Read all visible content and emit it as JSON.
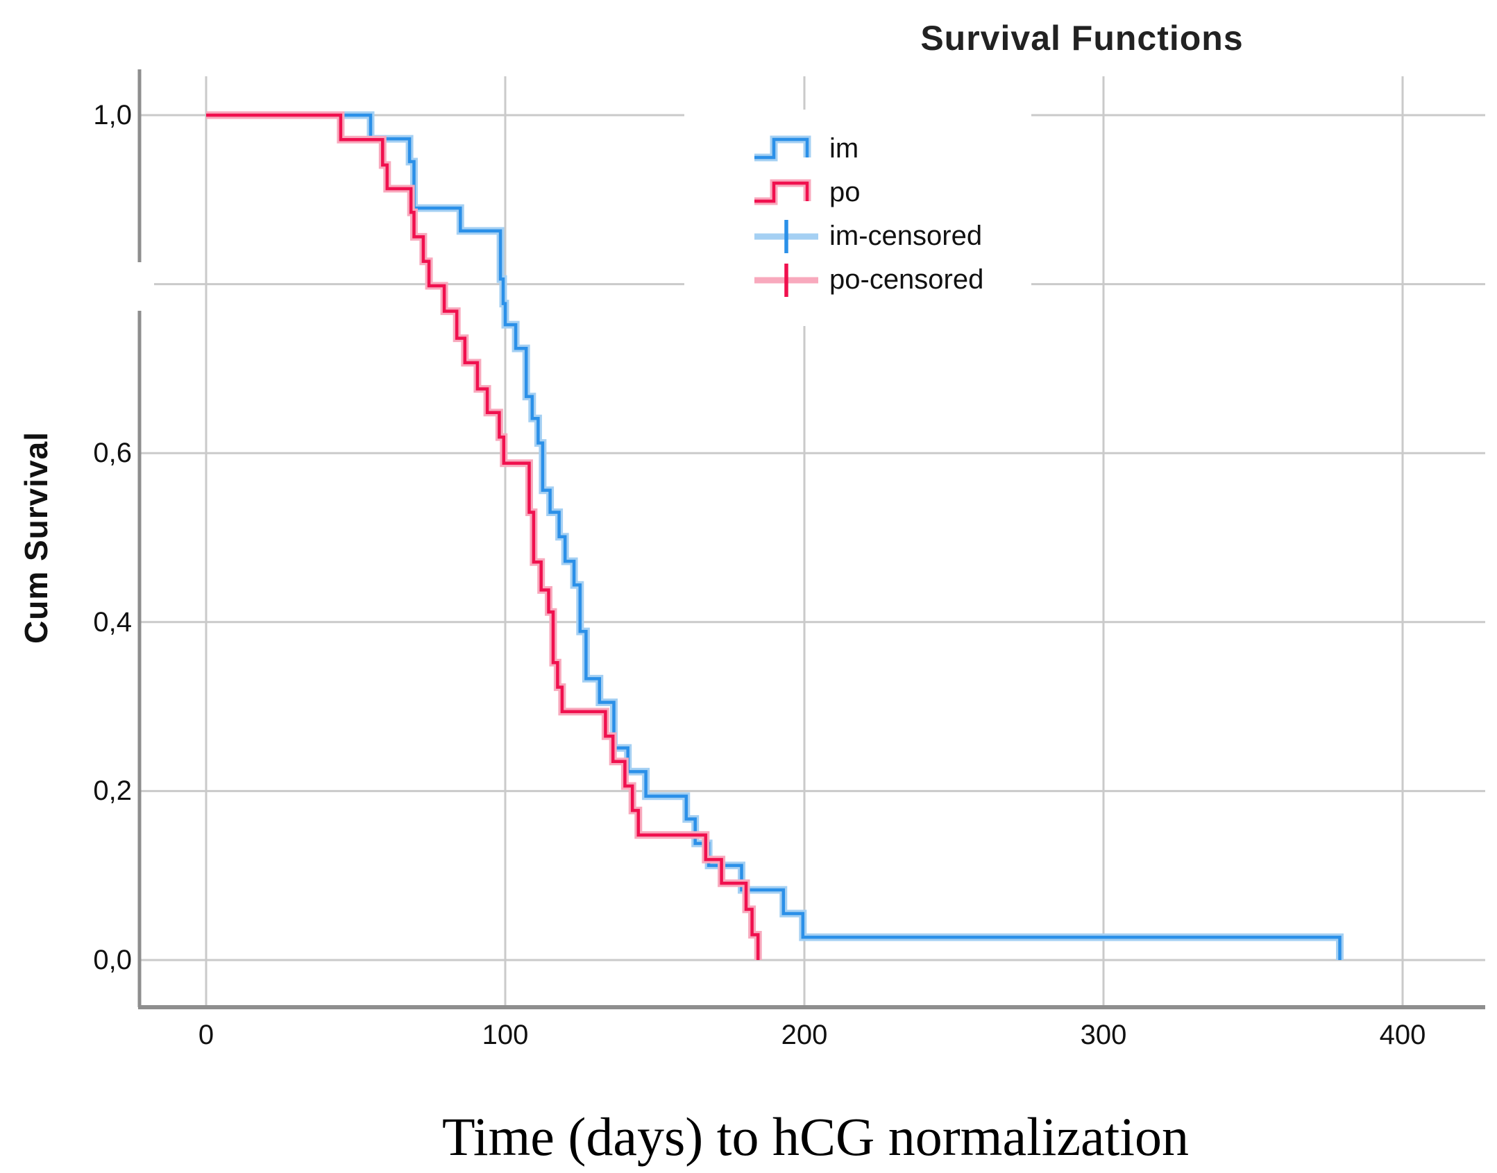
{
  "title": "Survival Functions",
  "y_axis": {
    "title": "Cum Survival",
    "tick_labels": [
      "1,0",
      "0,6",
      "0,4",
      "0,2",
      "0,0"
    ],
    "tick_values": [
      1.0,
      0.6,
      0.4,
      0.2,
      0.0
    ],
    "unlabeled_gridline_value": 0.8
  },
  "x_axis": {
    "title": "Time (days) to hCG normalization",
    "tick_labels": [
      "0",
      "100",
      "200",
      "300",
      "400"
    ],
    "tick_values": [
      0,
      100,
      200,
      300,
      400
    ]
  },
  "legend": {
    "items": [
      {
        "label": "im",
        "type": "step-line",
        "color": "#2B90E8",
        "halo": "#A5D0F3"
      },
      {
        "label": "po",
        "type": "step-line",
        "color": "#F0104E",
        "halo": "#F8A9BD"
      },
      {
        "label": "im-censored",
        "type": "censored-mark",
        "color": "#2B90E8",
        "halo": "#A5D0F3"
      },
      {
        "label": "po-censored",
        "type": "censored-mark",
        "color": "#F0104E",
        "halo": "#F8A9BD"
      }
    ]
  },
  "colors": {
    "im": "#2B90E8",
    "im_halo": "#A5D0F3",
    "po": "#F0104E",
    "po_halo": "#F8A9BD",
    "gridline": "#CACACA",
    "axis": "#8E8E8E",
    "text": "#111111"
  },
  "chart_data": {
    "type": "line",
    "subtype": "kaplan-meier-step",
    "title": "Survival Functions",
    "xlabel": "Time (days) to hCG normalization",
    "ylabel": "Cum Survival",
    "xlim": [
      -22,
      428
    ],
    "ylim": [
      -0.056,
      1.054
    ],
    "grid": true,
    "legend_position": "upper-center-right",
    "series": [
      {
        "name": "im",
        "color": "#2B90E8",
        "start": [
          0,
          1.0
        ],
        "steps": [
          [
            55,
            0.972
          ],
          [
            68,
            0.945
          ],
          [
            69.5,
            0.89
          ],
          [
            85,
            0.863
          ],
          [
            98.4,
            0.806
          ],
          [
            99.3,
            0.777
          ],
          [
            100,
            0.752
          ],
          [
            103.5,
            0.724
          ],
          [
            107,
            0.667
          ],
          [
            109,
            0.641
          ],
          [
            111,
            0.612
          ],
          [
            112.5,
            0.556
          ],
          [
            115,
            0.53
          ],
          [
            118,
            0.501
          ],
          [
            120,
            0.472
          ],
          [
            123,
            0.444
          ],
          [
            125,
            0.389
          ],
          [
            127,
            0.333
          ],
          [
            131.5,
            0.305
          ],
          [
            136.3,
            0.251
          ],
          [
            141,
            0.223
          ],
          [
            147,
            0.194
          ],
          [
            160.5,
            0.167
          ],
          [
            163.5,
            0.138
          ],
          [
            168,
            0.112
          ],
          [
            179,
            0.083
          ],
          [
            193,
            0.055
          ],
          [
            199.5,
            0.027
          ],
          [
            379,
            0.0
          ]
        ]
      },
      {
        "name": "po",
        "color": "#F0104E",
        "start": [
          0,
          1.0
        ],
        "steps": [
          [
            45,
            0.971
          ],
          [
            59,
            0.941
          ],
          [
            60.5,
            0.913
          ],
          [
            68.5,
            0.885
          ],
          [
            69.5,
            0.856
          ],
          [
            72.6,
            0.827
          ],
          [
            74.5,
            0.798
          ],
          [
            79.6,
            0.768
          ],
          [
            83.8,
            0.736
          ],
          [
            86.5,
            0.707
          ],
          [
            90.7,
            0.676
          ],
          [
            94,
            0.648
          ],
          [
            98,
            0.619
          ],
          [
            99.5,
            0.588
          ],
          [
            108,
            0.53
          ],
          [
            109.5,
            0.471
          ],
          [
            112,
            0.438
          ],
          [
            114.5,
            0.412
          ],
          [
            116,
            0.352
          ],
          [
            117.5,
            0.323
          ],
          [
            119,
            0.294
          ],
          [
            133.5,
            0.265
          ],
          [
            136,
            0.235
          ],
          [
            140,
            0.206
          ],
          [
            142.5,
            0.177
          ],
          [
            144.5,
            0.148
          ],
          [
            167,
            0.119
          ],
          [
            172.3,
            0.091
          ],
          [
            180.5,
            0.06
          ],
          [
            182.5,
            0.03
          ],
          [
            184.5,
            0.0
          ]
        ]
      }
    ]
  }
}
